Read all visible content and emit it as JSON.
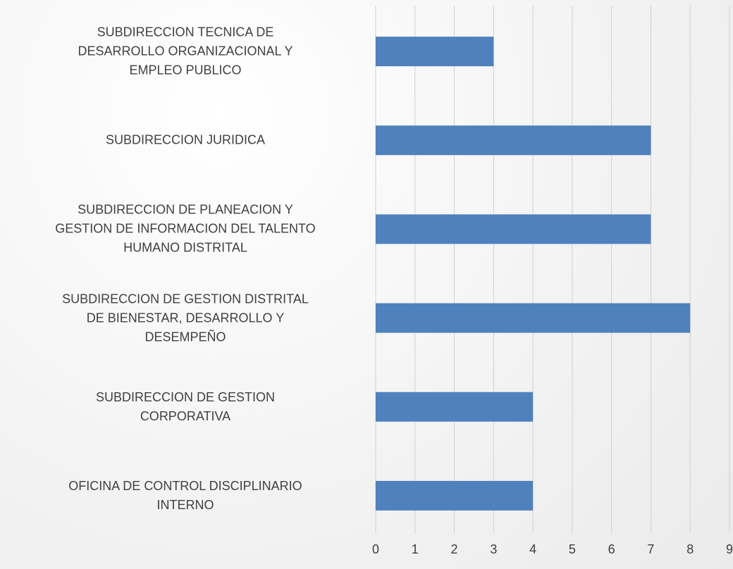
{
  "chart_data": {
    "type": "barh",
    "categories": [
      "SUBDIRECCION TECNICA DE\nDESARROLLO ORGANIZACIONAL Y\nEMPLEO PUBLICO",
      "SUBDIRECCION JURIDICA",
      "SUBDIRECCION DE PLANEACION Y\nGESTION DE INFORMACION DEL TALENTO\nHUMANO DISTRITAL",
      "SUBDIRECCION DE GESTION DISTRITAL\nDE BIENESTAR, DESARROLLO Y\nDESEMPEÑO",
      "SUBDIRECCION DE GESTION\nCORPORATIVA",
      "OFICINA DE CONTROL DISCIPLINARIO\nINTERNO"
    ],
    "values": [
      3,
      7,
      7,
      8,
      4,
      4
    ],
    "color": "#4f81bd",
    "xlim": [
      0,
      9
    ],
    "xticks": [
      0,
      1,
      2,
      3,
      4,
      5,
      6,
      7,
      8,
      9
    ],
    "grid": true
  }
}
